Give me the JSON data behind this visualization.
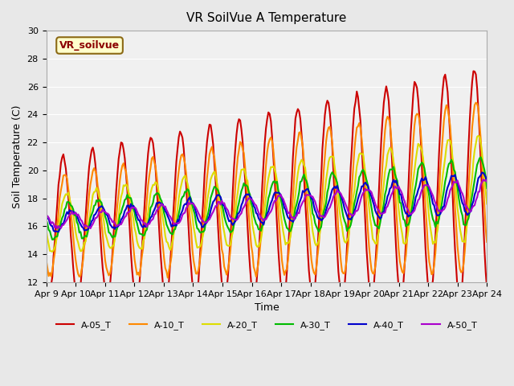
{
  "title": "VR SoilVue A Temperature",
  "xlabel": "Time",
  "ylabel": "Soil Temperature (C)",
  "ylim": [
    12,
    30
  ],
  "yticks": [
    12,
    14,
    16,
    18,
    20,
    22,
    24,
    26,
    28,
    30
  ],
  "annotation": "VR_soilvue",
  "bg_color": "#e8e8e8",
  "plot_bg_color": "#f0f0f0",
  "series": {
    "A-05_T": {
      "color": "#cc0000",
      "linewidth": 1.5
    },
    "A-10_T": {
      "color": "#ff8800",
      "linewidth": 1.5
    },
    "A-20_T": {
      "color": "#dddd00",
      "linewidth": 1.5
    },
    "A-30_T": {
      "color": "#00bb00",
      "linewidth": 1.5
    },
    "A-40_T": {
      "color": "#0000cc",
      "linewidth": 1.5
    },
    "A-50_T": {
      "color": "#aa00cc",
      "linewidth": 1.5
    }
  },
  "x_tick_labels": [
    "Apr 9",
    "Apr 10",
    "Apr 11",
    "Apr 12",
    "Apr 13",
    "Apr 14",
    "Apr 15",
    "Apr 16",
    "Apr 17",
    "Apr 18",
    "Apr 19",
    "Apr 20",
    "Apr 21",
    "Apr 22",
    "Apr 23",
    "Apr 24"
  ],
  "n_days": 15,
  "points_per_day": 24
}
